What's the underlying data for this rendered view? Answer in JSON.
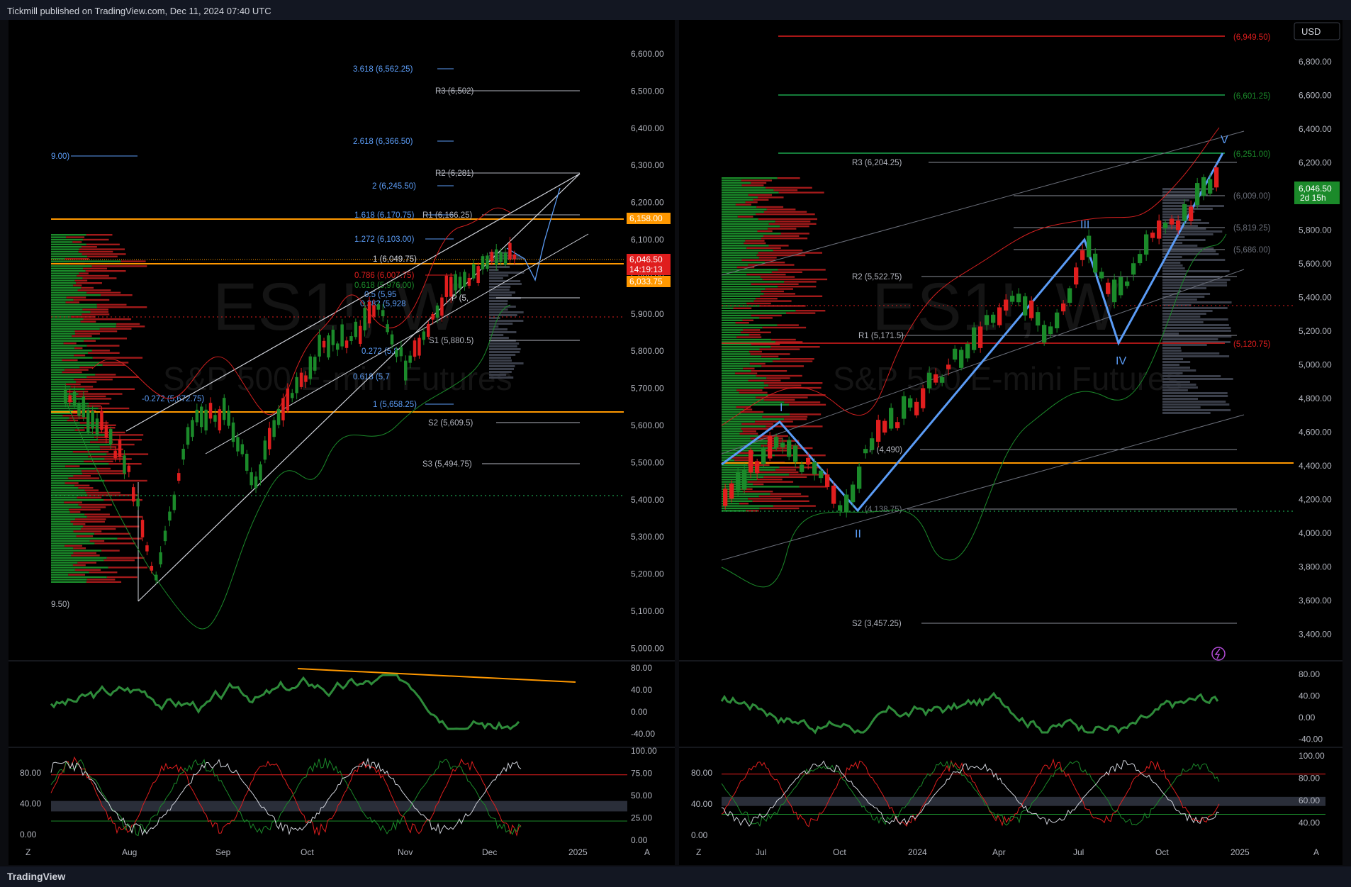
{
  "header": {
    "published": "Tickmill published on TradingView.com, Dec 11, 2024 07:40 UTC"
  },
  "footer": {
    "brand": "TradingView",
    "z": "Z",
    "a": "A"
  },
  "left": {
    "watermark_symbol": "ES1!, W",
    "watermark_name": "S&P 500 E-mini Futures",
    "price_tag": "6,046.50",
    "countdown": "14:19:13",
    "tag_upper": "6,158.00",
    "tag_lower": "6,033.75",
    "price_ticks": [
      "6,600.00",
      "6,500.00",
      "6,400.00",
      "6,300.00",
      "6,200.00",
      "6,100.00",
      "6,000.00",
      "5,900.00",
      "5,800.00",
      "5,700.00",
      "5,600.00",
      "5,500.00",
      "5,400.00",
      "5,300.00",
      "5,200.00",
      "5,100.00",
      "5,000.00"
    ],
    "levels": [
      "3.618 (6,562.25)",
      "R3 (6,502)",
      "2.618 (6,366.50)",
      "R2 (6,281)",
      "2 (6,245.50)",
      "1.618 (6,170.75)",
      "R1 (6,166.25)",
      "1.272 (6,103.00)",
      "1 (6,049.75)",
      "0.786 (6,007.75)",
      "0.618 (5,976.00)",
      "0.5 (5,95",
      "0.382 (5,928",
      "P (5,",
      "S1 (5,880.5)",
      "0.272 (5,8",
      "0.618 (5,7",
      "1 (5,658.25)",
      "S2 (5,609.5)",
      "S3 (5,494.75)",
      "9.00)",
      "-0.272 (5,672.75)",
      "9.50)"
    ],
    "osc1_ticks": [
      "80.00",
      "40.00",
      "0.00",
      "-40.00"
    ],
    "osc2_ticks_right": [
      "100.00",
      "75.00",
      "50.00",
      "25.00",
      "0.00"
    ],
    "osc2_ticks_left": [
      "80.00",
      "40.00",
      "0.00"
    ],
    "time_ticks": [
      "Aug",
      "Sep",
      "Oct",
      "Nov",
      "Dec",
      "2025"
    ]
  },
  "right": {
    "watermark_symbol": "ES1!, W",
    "watermark_name": "S&P 500 E-mini Futures",
    "currency": "USD",
    "price_tag": "6,046.50",
    "countdown": "2d 15h",
    "price_ticks": [
      "6,800.00",
      "6,600.00",
      "6,400.00",
      "6,200.00",
      "6,000.00",
      "5,800.00",
      "5,600.00",
      "5,400.00",
      "5,200.00",
      "5,000.00",
      "4,800.00",
      "4,600.00",
      "4,400.00",
      "4,200.00",
      "4,000.00",
      "3,800.00",
      "3,600.00",
      "3,400.00"
    ],
    "levels": [
      "(6,949.50)",
      "(6,601.25)",
      "(6,251.00)",
      "R3 (6,204.25)",
      "(6,009.00)",
      "(5,819.25)",
      "(5,686.00)",
      "R2 (5,522.75)",
      "R1 (5,171.5)",
      "(5,120.75)",
      "P (4,490)",
      "(4,138.75)",
      "S2 (3,457.25)"
    ],
    "waves": [
      "I",
      "II",
      "III",
      "IV",
      "V"
    ],
    "osc1_ticks": [
      "80.00",
      "40.00",
      "0.00",
      "-40.00"
    ],
    "osc2_ticks_right": [
      "100.00",
      "80.00",
      "60.00",
      "40.00"
    ],
    "osc2_ticks_left": [
      "80.00",
      "40.00",
      "0.00"
    ],
    "time_ticks": [
      "Jul",
      "Oct",
      "2024",
      "Apr",
      "Jul",
      "Oct",
      "2025"
    ]
  },
  "colors": {
    "up": "#1b8a2a",
    "down": "#e01e1e",
    "orange": "#ff9800",
    "blue": "#5b9cf6"
  }
}
